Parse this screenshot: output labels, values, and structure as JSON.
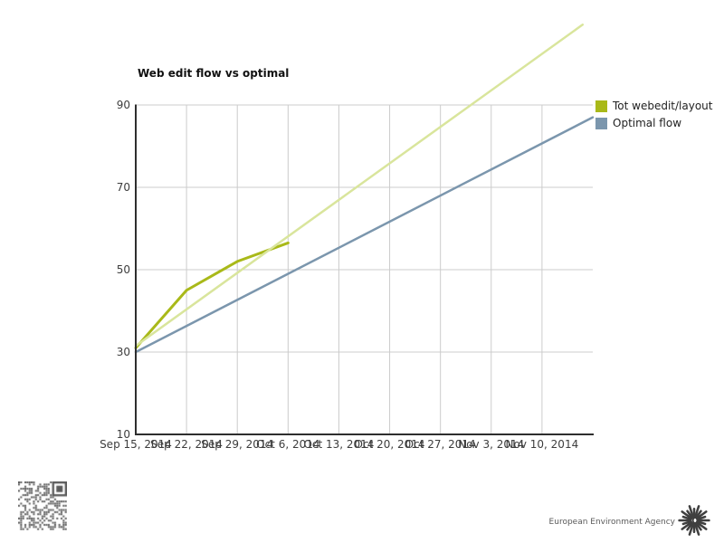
{
  "title": "Web edit flow vs optimal",
  "legend": {
    "position": "right",
    "items": [
      {
        "label": "Tot webedit/layout",
        "color": "#a9b919"
      },
      {
        "label": "Optimal flow",
        "color": "#7b96ad"
      }
    ]
  },
  "footer": {
    "agency": "European Environment Agency"
  },
  "colors": {
    "grid": "#cccccc",
    "axis": "#2e2e2e",
    "tick_label": "#3d3d3d",
    "series_webedit": "#a9b919",
    "series_trend": "#d9e59c",
    "series_optimal": "#7b96ad",
    "qr": "#5a5a5a",
    "logo": "#3f3f3f"
  },
  "chart_data": {
    "type": "line",
    "title": "Web edit flow vs optimal",
    "categories": [
      "Sep 15, 2014",
      "Sep 22, 2014",
      "Sep 29, 2014",
      "Oct 6, 2014",
      "Oct 13, 2014",
      "Oct 20, 2014",
      "Oct 27, 2014",
      "Nov 3, 2014",
      "Nov 10, 2014"
    ],
    "x_note": "9 labeled weekly ticks; plot area extends one extra unlabeled interval (index 9) past Nov 10; lines overflow plot top (no clipping)",
    "ylim": [
      10,
      90
    ],
    "yticks": [
      10,
      30,
      50,
      70,
      90
    ],
    "grid": true,
    "legend_position": "right",
    "series": [
      {
        "name": "Tot webedit/layout",
        "in_legend": true,
        "color": "#a9b919",
        "stroke_width": 3,
        "x_index": [
          0,
          1,
          2,
          3
        ],
        "values": [
          31,
          45,
          52,
          56.5
        ]
      },
      {
        "name": "Tot webedit/layout trend (unlabeled straight line)",
        "in_legend": false,
        "color": "#d9e59c",
        "stroke_width": 2.5,
        "x_index": [
          0,
          8.8
        ],
        "values": [
          31.5,
          109.5
        ]
      },
      {
        "name": "Optimal flow",
        "in_legend": true,
        "color": "#7b96ad",
        "stroke_width": 2.5,
        "x_index": [
          0,
          9
        ],
        "values": [
          30,
          87
        ]
      }
    ]
  }
}
